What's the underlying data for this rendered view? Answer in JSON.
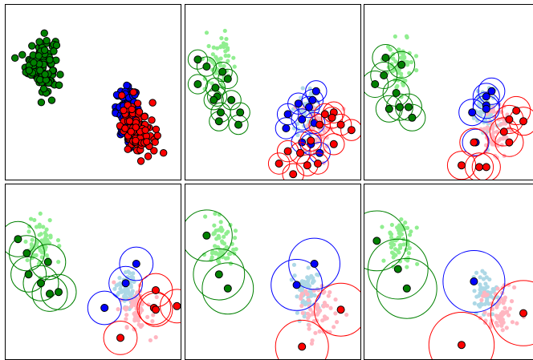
{
  "figure": {
    "rows": 2,
    "cols": 3
  },
  "colors": {
    "green": "#008000",
    "blue": "#0000ff",
    "red": "#ff0000",
    "light_green": "#90ee90",
    "light_blue": "#add8e6",
    "light_red": "#ffb6c1",
    "edge": "#000000"
  },
  "chart_data": [
    {
      "type": "scatter",
      "panel": 1,
      "title": "",
      "xlabel": "",
      "ylabel": "",
      "xlim": [
        0,
        10
      ],
      "ylim": [
        0,
        10
      ],
      "grid": false,
      "clusters": [
        {
          "color": "green",
          "center": [
            2.0,
            6.7
          ],
          "spread": [
            0.7,
            1.3
          ],
          "count": 120
        },
        {
          "color": "blue",
          "center": [
            6.9,
            3.9
          ],
          "spread": [
            0.55,
            1.1
          ],
          "count": 110
        },
        {
          "color": "red",
          "center": [
            7.5,
            2.9
          ],
          "spread": [
            0.8,
            1.2
          ],
          "count": 100
        }
      ],
      "points_style": "solid"
    },
    {
      "type": "scatter",
      "panel": 2,
      "xlim": [
        0,
        10
      ],
      "ylim": [
        0,
        10
      ],
      "background_clusters": [
        {
          "color": "light_green",
          "center": [
            2.0,
            6.7
          ],
          "spread": [
            0.7,
            1.3
          ],
          "count": 60
        },
        {
          "color": "light_blue",
          "center": [
            6.9,
            3.9
          ],
          "spread": [
            0.55,
            1.1
          ],
          "count": 60
        },
        {
          "color": "light_red",
          "center": [
            7.5,
            2.9
          ],
          "spread": [
            0.8,
            1.2
          ],
          "count": 60
        }
      ],
      "centers": [
        {
          "color": "green",
          "points": [
            [
              0.7,
              6.9
            ],
            [
              1.2,
              6.5
            ],
            [
              2.1,
              6.2
            ],
            [
              2.4,
              5.8
            ],
            [
              0.7,
              5.5
            ],
            [
              1.7,
              5.3
            ],
            [
              1.8,
              4.8
            ],
            [
              1.6,
              4.6
            ],
            [
              2.6,
              4.6
            ],
            [
              3.1,
              3.9
            ],
            [
              1.9,
              3.4
            ],
            [
              2.0,
              3.9
            ],
            [
              3.0,
              3.2
            ]
          ],
          "radius": 0.55
        },
        {
          "color": "blue",
          "points": [
            [
              7.4,
              5.1
            ],
            [
              7.2,
              4.6
            ],
            [
              6.4,
              4.4
            ],
            [
              7.0,
              4.2
            ],
            [
              5.8,
              3.8
            ],
            [
              6.6,
              3.5
            ],
            [
              7.3,
              3.3
            ],
            [
              5.7,
              3.0
            ],
            [
              6.6,
              2.2
            ],
            [
              7.6,
              1.6
            ],
            [
              7.1,
              2.1
            ]
          ],
          "radius": 0.6
        },
        {
          "color": "red",
          "points": [
            [
              7.9,
              3.8
            ],
            [
              8.4,
              3.9
            ],
            [
              8.3,
              3.6
            ],
            [
              7.6,
              3.2
            ],
            [
              8.8,
              3.2
            ],
            [
              9.4,
              2.9
            ],
            [
              7.1,
              2.3
            ],
            [
              8.4,
              2.1
            ],
            [
              5.8,
              1.7
            ],
            [
              6.5,
              1.6
            ],
            [
              5.3,
              1.0
            ],
            [
              6.9,
              0.9
            ],
            [
              7.5,
              1.0
            ],
            [
              6.1,
              0.4
            ]
          ],
          "radius": 0.6
        }
      ]
    },
    {
      "type": "scatter",
      "panel": 3,
      "xlim": [
        0,
        10
      ],
      "ylim": [
        0,
        10
      ],
      "background_clusters": [
        {
          "color": "light_green",
          "center": [
            2.0,
            6.7
          ],
          "spread": [
            0.7,
            1.3
          ],
          "count": 60
        },
        {
          "color": "light_blue",
          "center": [
            6.9,
            3.9
          ],
          "spread": [
            0.55,
            1.1
          ],
          "count": 60
        },
        {
          "color": "light_red",
          "center": [
            7.5,
            2.9
          ],
          "spread": [
            0.8,
            1.2
          ],
          "count": 60
        }
      ],
      "centers": [
        {
          "color": "green",
          "points": [
            [
              1.2,
              7.0
            ],
            [
              2.1,
              6.6
            ],
            [
              1.1,
              6.0
            ],
            [
              0.6,
              5.5
            ],
            [
              1.8,
              5.0
            ],
            [
              1.4,
              4.1
            ],
            [
              2.0,
              4.2
            ],
            [
              2.5,
              4.2
            ],
            [
              2.7,
              3.6
            ]
          ],
          "radius": 0.75
        },
        {
          "color": "blue",
          "points": [
            [
              7.2,
              5.1
            ],
            [
              6.9,
              4.8
            ],
            [
              6.9,
              4.3
            ],
            [
              6.1,
              3.9
            ],
            [
              6.9,
              4.1
            ],
            [
              6.3,
              2.2
            ]
          ],
          "radius": 0.75
        },
        {
          "color": "red",
          "points": [
            [
              8.6,
              4.0
            ],
            [
              8.2,
              3.5
            ],
            [
              9.0,
              3.4
            ],
            [
              7.9,
              2.8
            ],
            [
              8.2,
              2.2
            ],
            [
              5.5,
              0.9
            ],
            [
              6.5,
              0.8
            ],
            [
              6.9,
              0.8
            ],
            [
              6.2,
              2.2
            ]
          ],
          "radius": 0.8
        }
      ]
    },
    {
      "type": "scatter",
      "panel": 4,
      "xlim": [
        0,
        10
      ],
      "ylim": [
        0,
        10
      ],
      "background_clusters": [
        {
          "color": "light_green",
          "center": [
            2.0,
            6.7
          ],
          "spread": [
            0.7,
            1.3
          ],
          "count": 60
        },
        {
          "color": "light_blue",
          "center": [
            6.9,
            3.9
          ],
          "spread": [
            0.55,
            1.1
          ],
          "count": 60
        },
        {
          "color": "light_red",
          "center": [
            7.5,
            2.9
          ],
          "spread": [
            0.8,
            1.2
          ],
          "count": 60
        }
      ],
      "centers": [
        {
          "color": "green",
          "points": [
            [
              0.7,
              6.9
            ],
            [
              1.2,
              6.1
            ],
            [
              2.4,
              5.6
            ],
            [
              1.3,
              4.9
            ],
            [
              2.0,
              4.4
            ],
            [
              2.5,
              3.8
            ],
            [
              3.0,
              3.9
            ]
          ],
          "radius": 1.0
        },
        {
          "color": "blue",
          "points": [
            [
              7.4,
              5.5
            ],
            [
              6.8,
              4.4
            ],
            [
              5.6,
              3.0
            ]
          ],
          "radius": 0.95
        },
        {
          "color": "red",
          "points": [
            [
              8.5,
              4.0
            ],
            [
              8.4,
              3.0
            ],
            [
              8.5,
              2.9
            ],
            [
              9.7,
              3.1
            ],
            [
              6.5,
              1.3
            ]
          ],
          "radius": 0.95
        }
      ]
    },
    {
      "type": "scatter",
      "panel": 5,
      "xlim": [
        0,
        10
      ],
      "ylim": [
        0,
        10
      ],
      "background_clusters": [
        {
          "color": "light_green",
          "center": [
            2.0,
            6.7
          ],
          "spread": [
            0.7,
            1.3
          ],
          "count": 60
        },
        {
          "color": "light_blue",
          "center": [
            6.9,
            3.9
          ],
          "spread": [
            0.55,
            1.1
          ],
          "count": 60
        },
        {
          "color": "light_red",
          "center": [
            7.5,
            2.9
          ],
          "spread": [
            0.8,
            1.2
          ],
          "count": 60
        }
      ],
      "centers": [
        {
          "color": "green",
          "points": [
            [
              1.2,
              7.1
            ],
            [
              1.9,
              4.9
            ],
            [
              2.4,
              4.1
            ]
          ],
          "radius": 1.45
        },
        {
          "color": "blue",
          "points": [
            [
              7.3,
              5.5
            ],
            [
              6.3,
              4.3
            ]
          ],
          "radius": 1.45
        },
        {
          "color": "red",
          "points": [
            [
              8.8,
              2.9
            ],
            [
              6.6,
              0.8
            ]
          ],
          "radius": 1.5
        }
      ]
    },
    {
      "type": "scatter",
      "panel": 6,
      "xlim": [
        0,
        10
      ],
      "ylim": [
        0,
        10
      ],
      "background_clusters": [
        {
          "color": "light_green",
          "center": [
            2.0,
            6.7
          ],
          "spread": [
            0.7,
            1.3
          ],
          "count": 60
        },
        {
          "color": "light_blue",
          "center": [
            6.9,
            3.9
          ],
          "spread": [
            0.55,
            1.1
          ],
          "count": 60
        },
        {
          "color": "light_red",
          "center": [
            7.5,
            2.9
          ],
          "spread": [
            0.8,
            1.2
          ],
          "count": 60
        }
      ],
      "centers": [
        {
          "color": "green",
          "points": [
            [
              0.7,
              6.8
            ],
            [
              1.9,
              5.2
            ],
            [
              2.4,
              4.1
            ]
          ],
          "radius": 1.7
        },
        {
          "color": "blue",
          "points": [
            [
              6.2,
              4.5
            ]
          ],
          "radius": 1.75
        },
        {
          "color": "red",
          "points": [
            [
              9.0,
              2.7
            ],
            [
              5.5,
              0.9
            ]
          ],
          "radius": 1.85
        }
      ]
    }
  ]
}
